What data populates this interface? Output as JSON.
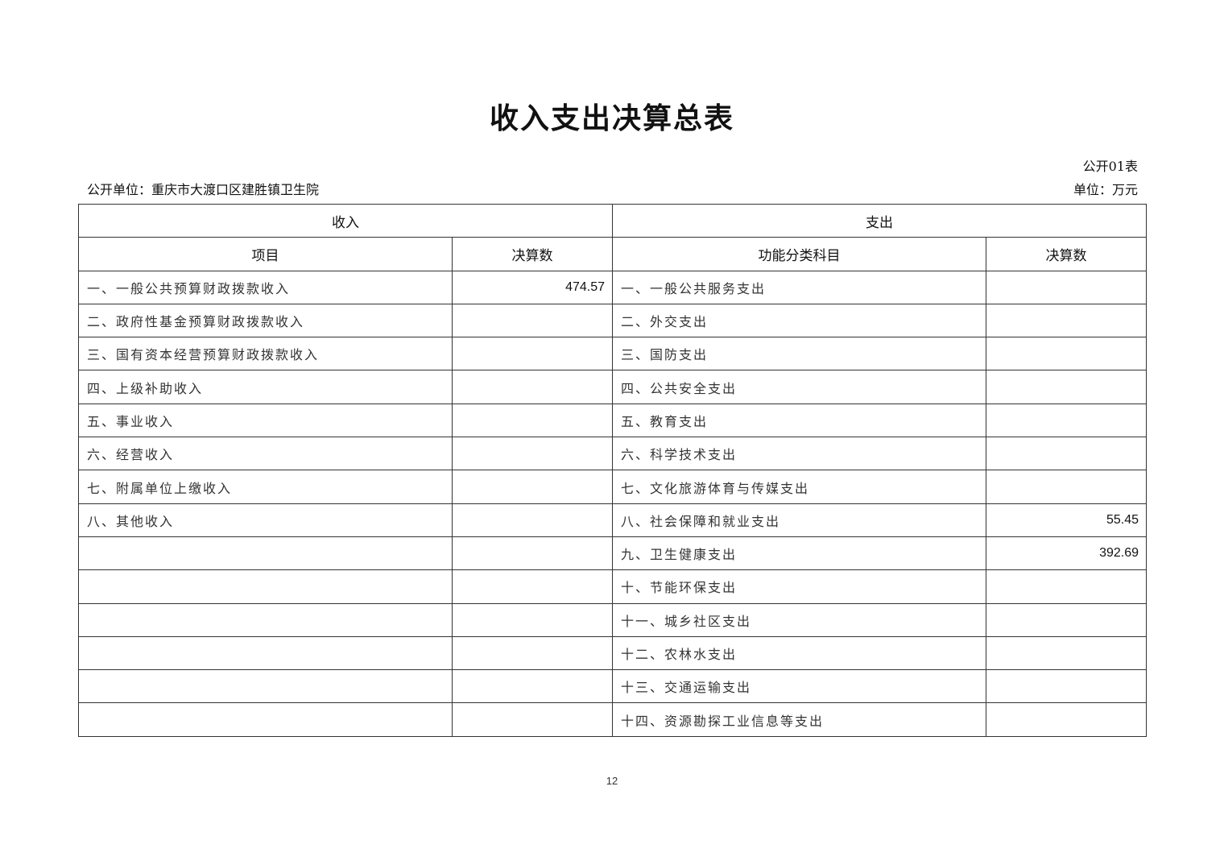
{
  "title": "收入支出决算总表",
  "form_no": "公开01表",
  "unit_label": "单位：万元",
  "org_label": "公开单位：重庆市大渡口区建胜镇卫生院",
  "headers": {
    "income": "收入",
    "expense": "支出",
    "income_item": "项目",
    "income_amount": "决算数",
    "expense_item": "功能分类科目",
    "expense_amount": "决算数"
  },
  "rows": [
    {
      "income_item": "一、一般公共预算财政拨款收入",
      "income_amount": "474.57",
      "expense_item": "一、一般公共服务支出",
      "expense_amount": ""
    },
    {
      "income_item": "二、政府性基金预算财政拨款收入",
      "income_amount": "",
      "expense_item": "二、外交支出",
      "expense_amount": ""
    },
    {
      "income_item": "三、国有资本经营预算财政拨款收入",
      "income_amount": "",
      "expense_item": "三、国防支出",
      "expense_amount": ""
    },
    {
      "income_item": "四、上级补助收入",
      "income_amount": "",
      "expense_item": "四、公共安全支出",
      "expense_amount": ""
    },
    {
      "income_item": "五、事业收入",
      "income_amount": "",
      "expense_item": "五、教育支出",
      "expense_amount": ""
    },
    {
      "income_item": "六、经营收入",
      "income_amount": "",
      "expense_item": "六、科学技术支出",
      "expense_amount": ""
    },
    {
      "income_item": "七、附属单位上缴收入",
      "income_amount": "",
      "expense_item": "七、文化旅游体育与传媒支出",
      "expense_amount": ""
    },
    {
      "income_item": "八、其他收入",
      "income_amount": "",
      "expense_item": "八、社会保障和就业支出",
      "expense_amount": "55.45"
    },
    {
      "income_item": "",
      "income_amount": "",
      "expense_item": "九、卫生健康支出",
      "expense_amount": "392.69"
    },
    {
      "income_item": "",
      "income_amount": "",
      "expense_item": "十、节能环保支出",
      "expense_amount": ""
    },
    {
      "income_item": "",
      "income_amount": "",
      "expense_item": "十一、城乡社区支出",
      "expense_amount": ""
    },
    {
      "income_item": "",
      "income_amount": "",
      "expense_item": "十二、农林水支出",
      "expense_amount": ""
    },
    {
      "income_item": "",
      "income_amount": "",
      "expense_item": "十三、交通运输支出",
      "expense_amount": ""
    },
    {
      "income_item": "",
      "income_amount": "",
      "expense_item": "十四、资源勘探工业信息等支出",
      "expense_amount": ""
    }
  ],
  "page_number": "12"
}
